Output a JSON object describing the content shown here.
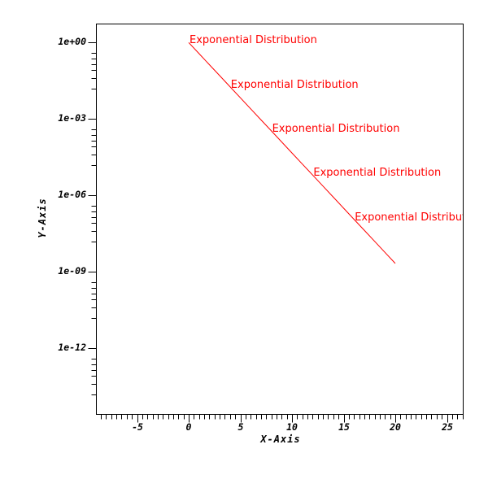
{
  "figure": {
    "background": "#ffffff",
    "axis_color": "#000000"
  },
  "axes": {
    "x": {
      "title": "X-Axis",
      "tick_labels": [
        {
          "value": -5,
          "label": "-5"
        },
        {
          "value": 0,
          "label": "0"
        },
        {
          "value": 5,
          "label": "5"
        },
        {
          "value": 10,
          "label": "10"
        },
        {
          "value": 15,
          "label": "15"
        },
        {
          "value": 20,
          "label": "20"
        },
        {
          "value": 25,
          "label": "25"
        }
      ]
    },
    "y": {
      "title": "Y-Axis",
      "tick_labels": [
        {
          "exponent": 0,
          "label": "1e+00"
        },
        {
          "exponent": -3,
          "label": "1e-03"
        },
        {
          "exponent": -6,
          "label": "1e-06"
        },
        {
          "exponent": -9,
          "label": "1e-09"
        },
        {
          "exponent": -12,
          "label": "1e-12"
        }
      ]
    }
  },
  "chart_data": {
    "type": "line",
    "title": "",
    "xlabel": "X-Axis",
    "ylabel": "Y-Axis",
    "xscale": "linear",
    "yscale": "log",
    "xlim": [
      -9,
      26.6
    ],
    "ylim": [
      2.4e-15,
      5.6
    ],
    "grid": false,
    "legend": "none",
    "x": [
      0,
      1,
      2,
      3,
      4,
      5,
      6,
      7,
      8,
      9,
      10,
      11,
      12,
      13,
      14,
      15,
      16,
      17,
      18,
      19,
      20
    ],
    "series": [
      {
        "name": "Exponential Distribution",
        "color": "#ff0000",
        "values": [
          1,
          0.3679,
          0.1353,
          0.04979,
          0.01832,
          0.006738,
          0.002479,
          0.0009119,
          0.0003355,
          0.0001234,
          4.54e-05,
          1.67e-05,
          6.144e-06,
          2.26e-06,
          8.315e-07,
          3.059e-07,
          1.125e-07,
          4.14e-08,
          1.523e-08,
          5.603e-09,
          2.061e-09
        ]
      }
    ],
    "annotations": [
      {
        "x": 0,
        "y": 1.0,
        "text": "Exponential Distribution"
      },
      {
        "x": 4,
        "y": 0.01832,
        "text": "Exponential Distribution"
      },
      {
        "x": 8,
        "y": 0.0003355,
        "text": "Exponential Distribution"
      },
      {
        "x": 12,
        "y": 6.144e-06,
        "text": "Exponential Distribution"
      },
      {
        "x": 16,
        "y": 1.125e-07,
        "text": "Exponential Distribution"
      }
    ]
  }
}
